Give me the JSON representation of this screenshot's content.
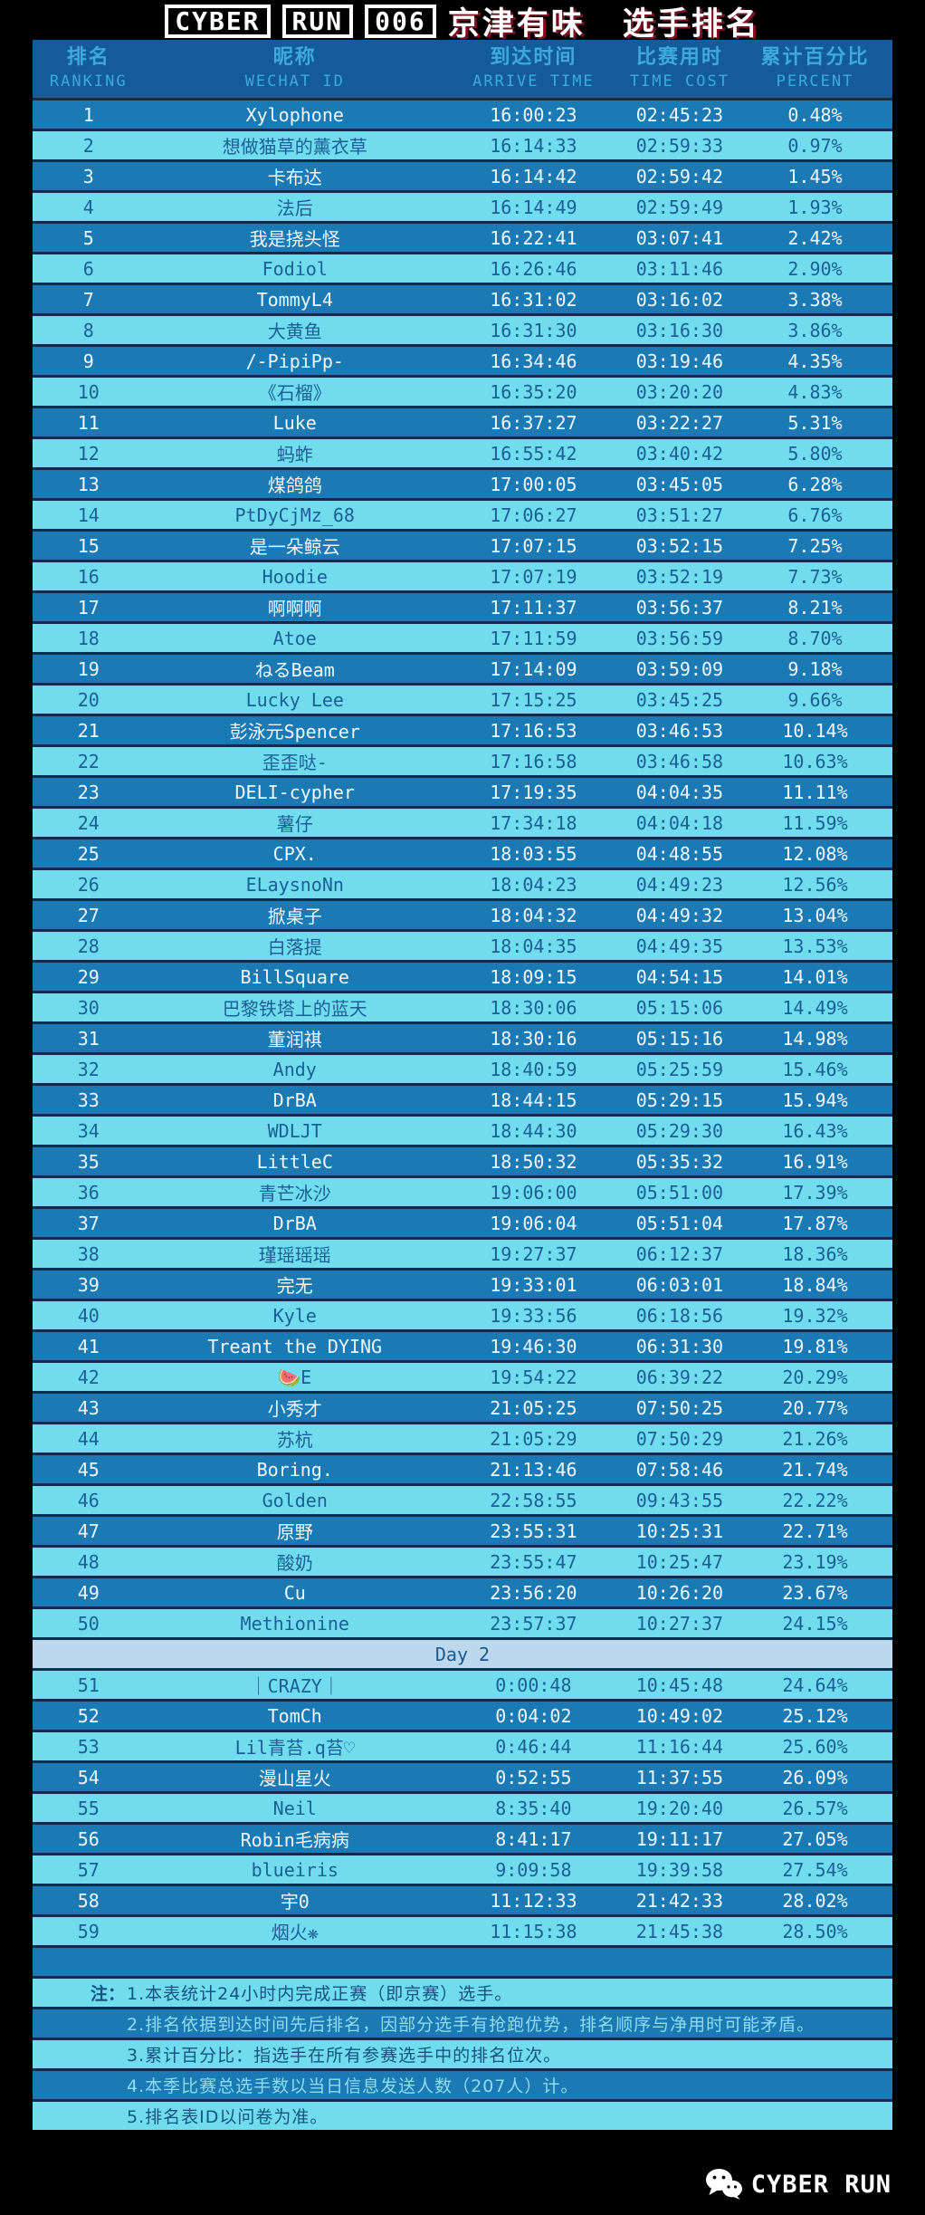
{
  "title": {
    "boxed_words": [
      "CYBER",
      "RUN",
      "006"
    ],
    "subtitle": "京津有味",
    "subtitle2": "选手排名"
  },
  "table": {
    "columns": [
      {
        "zh": "排名",
        "en": "RANKING"
      },
      {
        "zh": "昵称",
        "en": "WECHAT ID"
      },
      {
        "zh": "到达时间",
        "en": "ARRIVE  TIME"
      },
      {
        "zh": "比赛用时",
        "en": "TIME COST"
      },
      {
        "zh": "累计百分比",
        "en": "PERCENT"
      }
    ],
    "day2_separator_label": "Day 2",
    "day2_after_index": 50,
    "rows": [
      {
        "rank": "1",
        "name": "Xylophone",
        "arrive": "16:00:23",
        "cost": "02:45:23",
        "percent": "0.48%"
      },
      {
        "rank": "2",
        "name": "想做猫草的薰衣草",
        "arrive": "16:14:33",
        "cost": "02:59:33",
        "percent": "0.97%"
      },
      {
        "rank": "3",
        "name": "卡布达",
        "arrive": "16:14:42",
        "cost": "02:59:42",
        "percent": "1.45%"
      },
      {
        "rank": "4",
        "name": "法后",
        "arrive": "16:14:49",
        "cost": "02:59:49",
        "percent": "1.93%"
      },
      {
        "rank": "5",
        "name": "我是挠头怪",
        "arrive": "16:22:41",
        "cost": "03:07:41",
        "percent": "2.42%"
      },
      {
        "rank": "6",
        "name": "Fodiol",
        "arrive": "16:26:46",
        "cost": "03:11:46",
        "percent": "2.90%"
      },
      {
        "rank": "7",
        "name": "TommyL4",
        "arrive": "16:31:02",
        "cost": "03:16:02",
        "percent": "3.38%"
      },
      {
        "rank": "8",
        "name": "大黄鱼",
        "arrive": "16:31:30",
        "cost": "03:16:30",
        "percent": "3.86%"
      },
      {
        "rank": "9",
        "name": "/-PipiPp-",
        "arrive": "16:34:46",
        "cost": "03:19:46",
        "percent": "4.35%"
      },
      {
        "rank": "10",
        "name": "《石榴》",
        "arrive": "16:35:20",
        "cost": "03:20:20",
        "percent": "4.83%"
      },
      {
        "rank": "11",
        "name": "Luke",
        "arrive": "16:37:27",
        "cost": "03:22:27",
        "percent": "5.31%"
      },
      {
        "rank": "12",
        "name": "蚂蚱",
        "arrive": "16:55:42",
        "cost": "03:40:42",
        "percent": "5.80%"
      },
      {
        "rank": "13",
        "name": "煤鸽鸽",
        "arrive": "17:00:05",
        "cost": "03:45:05",
        "percent": "6.28%"
      },
      {
        "rank": "14",
        "name": "PtDyCjMz_68",
        "arrive": "17:06:27",
        "cost": "03:51:27",
        "percent": "6.76%"
      },
      {
        "rank": "15",
        "name": "是一朵鲸云",
        "arrive": "17:07:15",
        "cost": "03:52:15",
        "percent": "7.25%"
      },
      {
        "rank": "16",
        "name": "Hoodie",
        "arrive": "17:07:19",
        "cost": "03:52:19",
        "percent": "7.73%"
      },
      {
        "rank": "17",
        "name": "啊啊啊",
        "arrive": "17:11:37",
        "cost": "03:56:37",
        "percent": "8.21%"
      },
      {
        "rank": "18",
        "name": "Atoe",
        "arrive": "17:11:59",
        "cost": "03:56:59",
        "percent": "8.70%"
      },
      {
        "rank": "19",
        "name": "ねるBeam",
        "arrive": "17:14:09",
        "cost": "03:59:09",
        "percent": "9.18%"
      },
      {
        "rank": "20",
        "name": "Lucky Lee",
        "arrive": "17:15:25",
        "cost": "03:45:25",
        "percent": "9.66%"
      },
      {
        "rank": "21",
        "name": "彭泳元Spencer",
        "arrive": "17:16:53",
        "cost": "03:46:53",
        "percent": "10.14%"
      },
      {
        "rank": "22",
        "name": "歪歪哒-",
        "arrive": "17:16:58",
        "cost": "03:46:58",
        "percent": "10.63%"
      },
      {
        "rank": "23",
        "name": "DELI-cypher",
        "arrive": "17:19:35",
        "cost": "04:04:35",
        "percent": "11.11%"
      },
      {
        "rank": "24",
        "name": "薯仔",
        "arrive": "17:34:18",
        "cost": "04:04:18",
        "percent": "11.59%"
      },
      {
        "rank": "25",
        "name": "CPX.",
        "arrive": "18:03:55",
        "cost": "04:48:55",
        "percent": "12.08%"
      },
      {
        "rank": "26",
        "name": "ELaysnoNn",
        "arrive": "18:04:23",
        "cost": "04:49:23",
        "percent": "12.56%"
      },
      {
        "rank": "27",
        "name": "掀桌子",
        "arrive": "18:04:32",
        "cost": "04:49:32",
        "percent": "13.04%"
      },
      {
        "rank": "28",
        "name": "白落提",
        "arrive": "18:04:35",
        "cost": "04:49:35",
        "percent": "13.53%"
      },
      {
        "rank": "29",
        "name": "BillSquare",
        "arrive": "18:09:15",
        "cost": "04:54:15",
        "percent": "14.01%"
      },
      {
        "rank": "30",
        "name": "巴黎铁塔上的蓝天",
        "arrive": "18:30:06",
        "cost": "05:15:06",
        "percent": "14.49%"
      },
      {
        "rank": "31",
        "name": "董润祺",
        "arrive": "18:30:16",
        "cost": "05:15:16",
        "percent": "14.98%"
      },
      {
        "rank": "32",
        "name": "Andy",
        "arrive": "18:40:59",
        "cost": "05:25:59",
        "percent": "15.46%"
      },
      {
        "rank": "33",
        "name": "DrBA",
        "arrive": "18:44:15",
        "cost": "05:29:15",
        "percent": "15.94%"
      },
      {
        "rank": "34",
        "name": "WDLJT",
        "arrive": "18:44:30",
        "cost": "05:29:30",
        "percent": "16.43%"
      },
      {
        "rank": "35",
        "name": "LittleC",
        "arrive": "18:50:32",
        "cost": "05:35:32",
        "percent": "16.91%"
      },
      {
        "rank": "36",
        "name": "青芒冰沙",
        "arrive": "19:06:00",
        "cost": "05:51:00",
        "percent": "17.39%"
      },
      {
        "rank": "37",
        "name": "DrBA",
        "arrive": "19:06:04",
        "cost": "05:51:04",
        "percent": "17.87%"
      },
      {
        "rank": "38",
        "name": "瑾瑶瑶瑶",
        "arrive": "19:27:37",
        "cost": "06:12:37",
        "percent": "18.36%"
      },
      {
        "rank": "39",
        "name": "完无",
        "arrive": "19:33:01",
        "cost": "06:03:01",
        "percent": "18.84%"
      },
      {
        "rank": "40",
        "name": "Kyle",
        "arrive": "19:33:56",
        "cost": "06:18:56",
        "percent": "19.32%"
      },
      {
        "rank": "41",
        "name": "Treant the DYING",
        "arrive": "19:46:30",
        "cost": "06:31:30",
        "percent": "19.81%"
      },
      {
        "rank": "42",
        "name": "🍉E",
        "arrive": "19:54:22",
        "cost": "06:39:22",
        "percent": "20.29%"
      },
      {
        "rank": "43",
        "name": "小秀才",
        "arrive": "21:05:25",
        "cost": "07:50:25",
        "percent": "20.77%"
      },
      {
        "rank": "44",
        "name": "苏杭",
        "arrive": "21:05:29",
        "cost": "07:50:29",
        "percent": "21.26%"
      },
      {
        "rank": "45",
        "name": "Boring.",
        "arrive": "21:13:46",
        "cost": "07:58:46",
        "percent": "21.74%"
      },
      {
        "rank": "46",
        "name": "Golden",
        "arrive": "22:58:55",
        "cost": "09:43:55",
        "percent": "22.22%"
      },
      {
        "rank": "47",
        "name": "原野",
        "arrive": "23:55:31",
        "cost": "10:25:31",
        "percent": "22.71%"
      },
      {
        "rank": "48",
        "name": "酸奶",
        "arrive": "23:55:47",
        "cost": "10:25:47",
        "percent": "23.19%"
      },
      {
        "rank": "49",
        "name": "Cu",
        "arrive": "23:56:20",
        "cost": "10:26:20",
        "percent": "23.67%"
      },
      {
        "rank": "50",
        "name": "Methionine",
        "arrive": "23:57:37",
        "cost": "10:27:37",
        "percent": "24.15%"
      },
      {
        "rank": "51",
        "name": "｜CRAZY｜",
        "arrive": "0:00:48",
        "cost": "10:45:48",
        "percent": "24.64%"
      },
      {
        "rank": "52",
        "name": "TomCh",
        "arrive": "0:04:02",
        "cost": "10:49:02",
        "percent": "25.12%"
      },
      {
        "rank": "53",
        "name": "Lil青苔.q苔♡",
        "arrive": "0:46:44",
        "cost": "11:16:44",
        "percent": "25.60%"
      },
      {
        "rank": "54",
        "name": "漫山星火",
        "arrive": "0:52:55",
        "cost": "11:37:55",
        "percent": "26.09%"
      },
      {
        "rank": "55",
        "name": "Neil",
        "arrive": "8:35:40",
        "cost": "19:20:40",
        "percent": "26.57%"
      },
      {
        "rank": "56",
        "name": "Robin毛病病",
        "arrive": "8:41:17",
        "cost": "19:11:17",
        "percent": "27.05%"
      },
      {
        "rank": "57",
        "name": "blueiris",
        "arrive": "9:09:58",
        "cost": "19:39:58",
        "percent": "27.54%"
      },
      {
        "rank": "58",
        "name": "宇0",
        "arrive": "11:12:33",
        "cost": "21:42:33",
        "percent": "28.02%"
      },
      {
        "rank": "59",
        "name": "烟火❋",
        "arrive": "11:15:38",
        "cost": "21:45:38",
        "percent": "28.50%"
      }
    ]
  },
  "notes": {
    "prefix": "注：",
    "items": [
      "1.本表统计24小时内完成正赛（即京赛）选手。",
      "2.排名依据到达时间先后排名，因部分选手有抢跑优势，排名顺序与净用时可能矛盾。",
      "3.累计百分比：指选手在所有参赛选手中的排名位次。",
      "4.本季比赛总选手数以当日信息发送人数（207人）计。",
      "5.排名表ID以问卷为准。"
    ]
  },
  "footer": {
    "brand": "CYBER RUN",
    "icon": "wechat-icon"
  },
  "colors": {
    "row_dark": "#1b79b4",
    "row_light": "#70dcee",
    "header_bg": "#135b9b",
    "header_text": "#3fa9da",
    "day2_bg": "#bdd7ec",
    "text_on_dark": "#eef8fd",
    "text_on_light": "#1d5f95",
    "separator": "#07304f",
    "title_shadow": "#7a1020",
    "background": "#000000"
  }
}
